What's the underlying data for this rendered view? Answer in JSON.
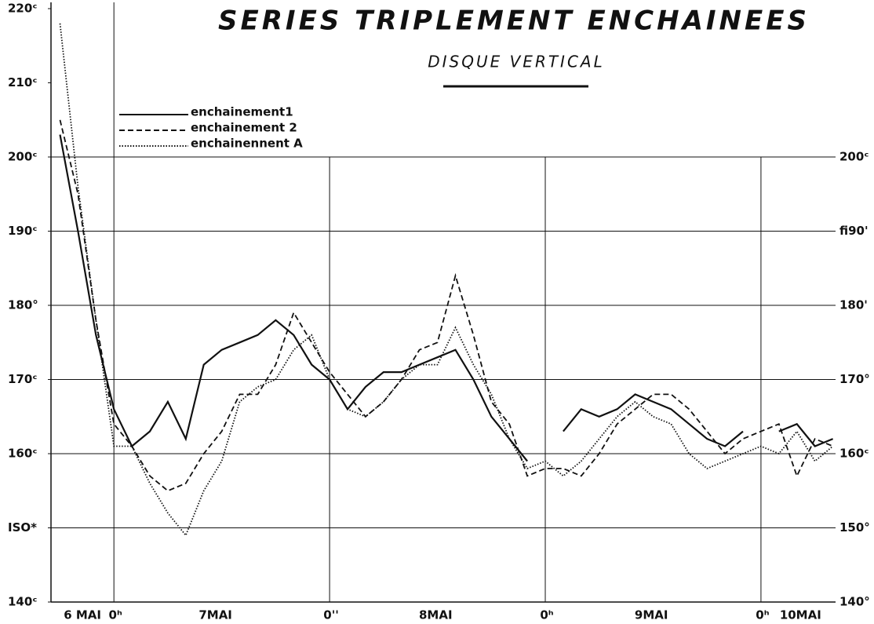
{
  "chart_data": {
    "type": "line",
    "title": "SERIES TRIPLEMENT ENCHAINEES",
    "subtitle": "DISQUE VERTICAL",
    "x": [
      -6,
      -4,
      -2,
      0,
      2,
      4,
      6,
      8,
      10,
      12,
      14,
      16,
      18,
      20,
      22,
      24,
      26,
      28,
      30,
      32,
      34,
      36,
      38,
      40,
      42,
      44,
      46,
      48,
      50,
      52,
      54,
      56,
      58,
      60,
      62,
      64,
      66,
      68,
      70,
      72,
      74,
      76,
      78,
      80
    ],
    "series": [
      {
        "name": "enchainement1",
        "color": "#111111",
        "dash": "solid",
        "values": [
          203,
          190,
          176,
          166,
          161,
          163,
          167,
          162,
          172,
          174,
          175,
          176,
          178,
          176,
          172,
          170,
          166,
          169,
          171,
          171,
          172,
          173,
          174,
          170,
          165,
          162,
          159,
          null,
          163,
          166,
          165,
          166,
          168,
          167,
          166,
          164,
          162,
          161,
          163,
          null,
          163,
          164,
          161,
          162
        ]
      },
      {
        "name": "enchainement 2",
        "color": "#111111",
        "dash": "dashed",
        "values": [
          205,
          195,
          178,
          164,
          161,
          157,
          155,
          156,
          160,
          163,
          168,
          168,
          172,
          179,
          175,
          171,
          168,
          165,
          167,
          170,
          174,
          175,
          184,
          176,
          167,
          164,
          157,
          158,
          158,
          157,
          160,
          164,
          166,
          168,
          168,
          166,
          163,
          160,
          162,
          163,
          164,
          157,
          162,
          161
        ]
      },
      {
        "name": "enchainennent A",
        "color": "#111111",
        "dash": "dotted",
        "values": [
          218,
          196,
          178,
          161,
          161,
          156,
          152,
          149,
          155,
          159,
          167,
          169,
          170,
          174,
          176,
          170,
          166,
          165,
          167,
          170,
          172,
          172,
          177,
          172,
          168,
          162,
          158,
          159,
          157,
          159,
          162,
          165,
          167,
          165,
          164,
          160,
          158,
          159,
          160,
          161,
          160,
          163,
          159,
          161
        ]
      }
    ],
    "xlim": [
      -7,
      80.3
    ],
    "xticks": [
      {
        "value": 0,
        "label": "0ʰ"
      },
      {
        "value": 24,
        "label": "0''"
      },
      {
        "value": 48,
        "label": "0ʰ"
      },
      {
        "value": 72,
        "label": "0ʰ"
      }
    ],
    "day_labels": [
      {
        "x": -3.5,
        "label": "6 MAI"
      },
      {
        "x": 11.3,
        "label": "7MAI"
      },
      {
        "x": 35.8,
        "label": "8MAI"
      },
      {
        "x": 59.8,
        "label": "9MAI"
      },
      {
        "x": 76.4,
        "label": "10MAI"
      }
    ],
    "ylim": [
      140,
      220
    ],
    "yticks": [
      {
        "value": 220,
        "label": "220ᶜ"
      },
      {
        "value": 210,
        "label": "210ᶜ"
      },
      {
        "value": 200,
        "label": "200ᶜ"
      },
      {
        "value": 190,
        "label": "190ᶜ"
      },
      {
        "value": 180,
        "label": "180°"
      },
      {
        "value": 170,
        "label": "170ᶜ"
      },
      {
        "value": 160,
        "label": "160ᶜ"
      },
      {
        "value": 150,
        "label": "ISO*"
      },
      {
        "value": 140,
        "label": "140ᶜ"
      }
    ],
    "y2lim": [
      140,
      220
    ],
    "y2ticks": [
      {
        "value": 200,
        "label": "200ᶜ"
      },
      {
        "value": 190,
        "label": "fi90'"
      },
      {
        "value": 180,
        "label": "180'"
      },
      {
        "value": 170,
        "label": "170°"
      },
      {
        "value": 160,
        "label": "160ᶜ"
      },
      {
        "value": 150,
        "label": "150°"
      },
      {
        "value": 140,
        "label": "140°"
      }
    ],
    "grid": true,
    "legend": "upper left"
  }
}
